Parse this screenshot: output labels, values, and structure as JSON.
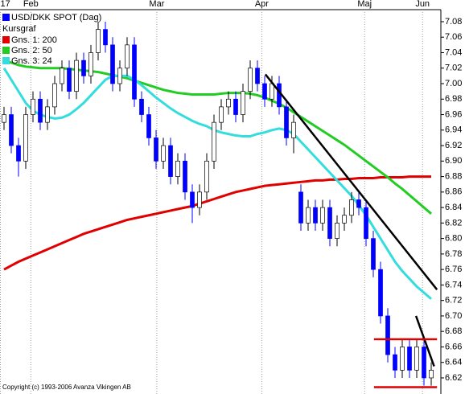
{
  "chart_data": {
    "type": "candlestick",
    "title": "USD/DKK SPOT (Dag)",
    "subtitle": "Kursgraf",
    "copyright": "Copyright (c) 1993-2006 Avanza Vikingen AB",
    "categories": [
      null,
      null,
      null,
      null,
      null,
      null,
      null,
      null,
      null,
      null,
      null,
      null,
      null,
      null,
      null,
      null,
      null,
      null,
      null,
      null,
      null,
      null,
      null,
      null,
      null,
      null,
      null,
      null,
      null,
      null,
      null,
      null,
      null,
      null,
      null,
      null,
      null,
      null,
      null,
      null,
      null,
      null,
      null,
      null,
      null,
      null,
      null,
      null,
      null,
      null,
      null,
      null,
      null,
      null,
      null,
      null,
      null,
      null,
      null,
      null
    ],
    "open": [
      6.95,
      6.96,
      6.92,
      6.9,
      6.96,
      6.98,
      6.95,
      6.97,
      7.0,
      7.02,
      6.99,
      7.03,
      7.01,
      7.04,
      7.07,
      7.05,
      7.0,
      7.02,
      7.05,
      6.98,
      6.96,
      6.93,
      6.9,
      6.92,
      6.88,
      6.9,
      6.86,
      6.84,
      6.86,
      6.9,
      6.95,
      6.97,
      6.98,
      6.96,
      6.99,
      7.02,
      7.0,
      6.98,
      7.0,
      6.97,
      6.93,
      6.86,
      6.82,
      6.84,
      6.82,
      6.84,
      6.8,
      6.82,
      6.83,
      6.85,
      6.84,
      6.8,
      6.76,
      6.7,
      6.65,
      6.63,
      6.66,
      6.63,
      6.66,
      6.62
    ],
    "high": [
      6.97,
      6.97,
      6.93,
      6.97,
      6.99,
      6.99,
      6.98,
      7.01,
      7.03,
      7.03,
      7.04,
      7.04,
      7.05,
      7.08,
      7.08,
      7.06,
      7.03,
      7.06,
      7.06,
      6.99,
      6.97,
      6.94,
      6.93,
      6.93,
      6.91,
      6.91,
      6.87,
      6.87,
      6.91,
      6.96,
      6.98,
      6.99,
      6.99,
      7.0,
      7.03,
      7.03,
      7.01,
      7.01,
      7.01,
      6.98,
      6.96,
      6.87,
      6.85,
      6.85,
      6.85,
      6.85,
      6.83,
      6.84,
      6.86,
      6.86,
      6.85,
      6.81,
      6.77,
      6.71,
      6.66,
      6.67,
      6.67,
      6.67,
      6.67,
      6.64
    ],
    "low": [
      6.94,
      6.91,
      6.88,
      6.89,
      6.95,
      6.94,
      6.94,
      6.96,
      6.99,
      6.98,
      6.98,
      7.0,
      7.0,
      7.03,
      7.04,
      6.99,
      6.99,
      7.01,
      6.97,
      6.95,
      6.92,
      6.89,
      6.89,
      6.87,
      6.87,
      6.85,
      6.82,
      6.83,
      6.85,
      6.89,
      6.94,
      6.96,
      6.95,
      6.95,
      6.98,
      6.99,
      6.97,
      6.97,
      6.96,
      6.92,
      6.91,
      6.81,
      6.81,
      6.81,
      6.81,
      6.79,
      6.79,
      6.81,
      6.82,
      6.83,
      6.79,
      6.75,
      6.69,
      6.64,
      6.62,
      6.62,
      6.62,
      6.62,
      6.61,
      6.61
    ],
    "close": [
      6.96,
      6.92,
      6.9,
      6.96,
      6.98,
      6.95,
      6.97,
      7.0,
      7.02,
      6.99,
      7.03,
      7.01,
      7.04,
      7.07,
      7.05,
      7.0,
      7.02,
      7.05,
      6.98,
      6.96,
      6.93,
      6.9,
      6.92,
      6.88,
      6.9,
      6.86,
      6.84,
      6.86,
      6.9,
      6.95,
      6.97,
      6.98,
      6.96,
      6.99,
      7.02,
      7.0,
      6.98,
      7.0,
      6.97,
      6.93,
      6.95,
      6.82,
      6.84,
      6.82,
      6.84,
      6.8,
      6.82,
      6.83,
      6.85,
      6.84,
      6.8,
      6.76,
      6.7,
      6.65,
      6.63,
      6.66,
      6.63,
      6.66,
      6.62,
      6.63
    ],
    "up_color": "#ffffff",
    "down_color": "#0000ff",
    "color": "#0000ff",
    "series": [
      {
        "name": "Gns. 1: 200",
        "color": "#e00000",
        "values": [
          6.76,
          6.765,
          6.77,
          6.774,
          6.778,
          6.782,
          6.786,
          6.79,
          6.794,
          6.798,
          6.802,
          6.806,
          6.809,
          6.812,
          6.815,
          6.818,
          6.821,
          6.824,
          6.826,
          6.828,
          6.83,
          6.832,
          6.834,
          6.836,
          6.838,
          6.84,
          6.842,
          6.845,
          6.848,
          6.851,
          6.854,
          6.857,
          6.86,
          6.862,
          6.864,
          6.866,
          6.868,
          6.869,
          6.87,
          6.871,
          6.872,
          6.873,
          6.874,
          6.875,
          6.875,
          6.876,
          6.876,
          6.877,
          6.877,
          6.878,
          6.878,
          6.878,
          6.879,
          6.879,
          6.879,
          6.879,
          6.88,
          6.88,
          6.88,
          6.88
        ]
      },
      {
        "name": "Gns. 2: 50",
        "color": "#22cc22",
        "values": [
          7.03,
          7.027,
          7.024,
          7.022,
          7.021,
          7.02,
          7.02,
          7.02,
          7.02,
          7.019,
          7.018,
          7.017,
          7.016,
          7.015,
          7.013,
          7.011,
          7.009,
          7.007,
          7.004,
          7.001,
          6.998,
          6.995,
          6.992,
          6.99,
          6.988,
          6.987,
          6.986,
          6.986,
          6.986,
          6.986,
          6.987,
          6.988,
          6.988,
          6.988,
          6.987,
          6.985,
          6.982,
          6.978,
          6.974,
          6.969,
          6.963,
          6.957,
          6.951,
          6.945,
          6.939,
          6.933,
          6.927,
          6.921,
          6.914,
          6.907,
          6.9,
          6.893,
          6.886,
          6.879,
          6.871,
          6.864,
          6.856,
          6.848,
          6.84,
          6.832
        ]
      },
      {
        "name": "Gns. 3: 24",
        "color": "#33dddd",
        "values": [
          7.02,
          7.005,
          6.99,
          6.975,
          6.965,
          6.96,
          6.957,
          6.955,
          6.956,
          6.96,
          6.967,
          6.975,
          6.985,
          6.995,
          7.005,
          7.01,
          7.01,
          7.01,
          7.005,
          6.998,
          6.99,
          6.982,
          6.975,
          6.968,
          6.962,
          6.957,
          6.952,
          6.948,
          6.945,
          6.94,
          6.937,
          6.935,
          6.933,
          6.932,
          6.932,
          6.935,
          6.937,
          6.94,
          6.942,
          6.94,
          6.935,
          6.925,
          6.915,
          6.905,
          6.895,
          6.885,
          6.875,
          6.865,
          6.855,
          6.843,
          6.83,
          6.815,
          6.8,
          6.785,
          6.77,
          6.758,
          6.748,
          6.738,
          6.73,
          6.722
        ]
      }
    ],
    "trendlines": [
      {
        "color": "#000000",
        "x": [
          36.1,
          59.8
        ],
        "y": [
          7.012,
          6.734
        ]
      },
      {
        "color": "#000000",
        "x": [
          56.9,
          59.4
        ],
        "y": [
          6.7,
          6.635
        ]
      },
      {
        "color": "#e00000",
        "x": [
          51.1,
          59.8
        ],
        "y": [
          6.67,
          6.67
        ]
      },
      {
        "color": "#e00000",
        "x": [
          51.1,
          59.8
        ],
        "y": [
          6.608,
          6.608
        ]
      }
    ],
    "ylim": [
      6.61,
      7.1
    ],
    "yticks": [
      6.62,
      6.64,
      6.66,
      6.68,
      {
        "value": 6.7,
        "label": "6.70"
      },
      6.72,
      6.74,
      6.76,
      6.78,
      {
        "value": 6.8,
        "label": "6.80"
      },
      6.82,
      6.84,
      6.86,
      6.88,
      {
        "value": 6.9,
        "label": "6.90"
      },
      6.92,
      6.94,
      6.96,
      6.98,
      {
        "value": 7,
        "label": "7.00"
      },
      7.02,
      7.04,
      7.06,
      7.08
    ],
    "xticks": [
      {
        "value": -0.5,
        "label": "17"
      },
      {
        "value": 3.7,
        "label": "Feb"
      },
      {
        "value": 21.1,
        "label": "Mar"
      },
      {
        "value": 35.6,
        "label": "Apr"
      },
      {
        "value": 49.8,
        "label": "Maj"
      },
      {
        "value": 57.8,
        "label": "Jun"
      }
    ],
    "xgrid": true
  }
}
